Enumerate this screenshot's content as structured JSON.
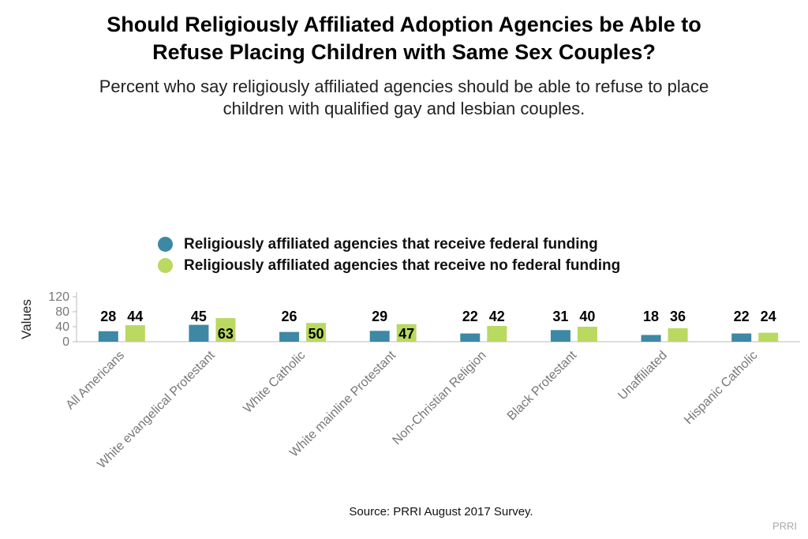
{
  "title_line1": "Should Religiously Affiliated Adoption Agencies be Able to",
  "title_line2": "Refuse Placing Children with Same Sex Couples?",
  "subtitle_line1": "Percent who say religiously affiliated agencies should be able to refuse to place",
  "subtitle_line2": "children with qualified gay and lesbian couples.",
  "source": "Source: PRRI August 2017 Survey.",
  "watermark": "PRRI",
  "colors": {
    "federal": "#3d88a4",
    "no_federal": "#b9d960",
    "axis": "#bbbbbb",
    "tick_text": "#777777"
  },
  "chart_data": {
    "type": "bar",
    "title": "Should Religiously Affiliated Adoption Agencies be Able to Refuse Placing Children with Same Sex Couples?",
    "subtitle": "Percent who say religiously affiliated agencies should be able to refuse to place children with qualified gay and lesbian couples.",
    "xlabel": "",
    "ylabel": "Values",
    "ylim": [
      0,
      120
    ],
    "yticks": [
      0,
      40,
      80,
      120
    ],
    "grid": false,
    "legend_position": "top-center",
    "categories": [
      "All Americans",
      "White evangelical Protestant",
      "White Catholic",
      "White mainline Protestant",
      "Non-Christian Religion",
      "Black Protestant",
      "Unaffiliated",
      "Hispanic Catholic"
    ],
    "series": [
      {
        "name": "Religiously affiliated agencies that receive federal funding",
        "color": "#3d88a4",
        "values": [
          28,
          45,
          26,
          29,
          22,
          31,
          18,
          22
        ]
      },
      {
        "name": "Religiously affiliated agencies that receive no federal funding",
        "color": "#b9d960",
        "values": [
          44,
          63,
          50,
          47,
          42,
          40,
          36,
          24
        ]
      }
    ]
  }
}
